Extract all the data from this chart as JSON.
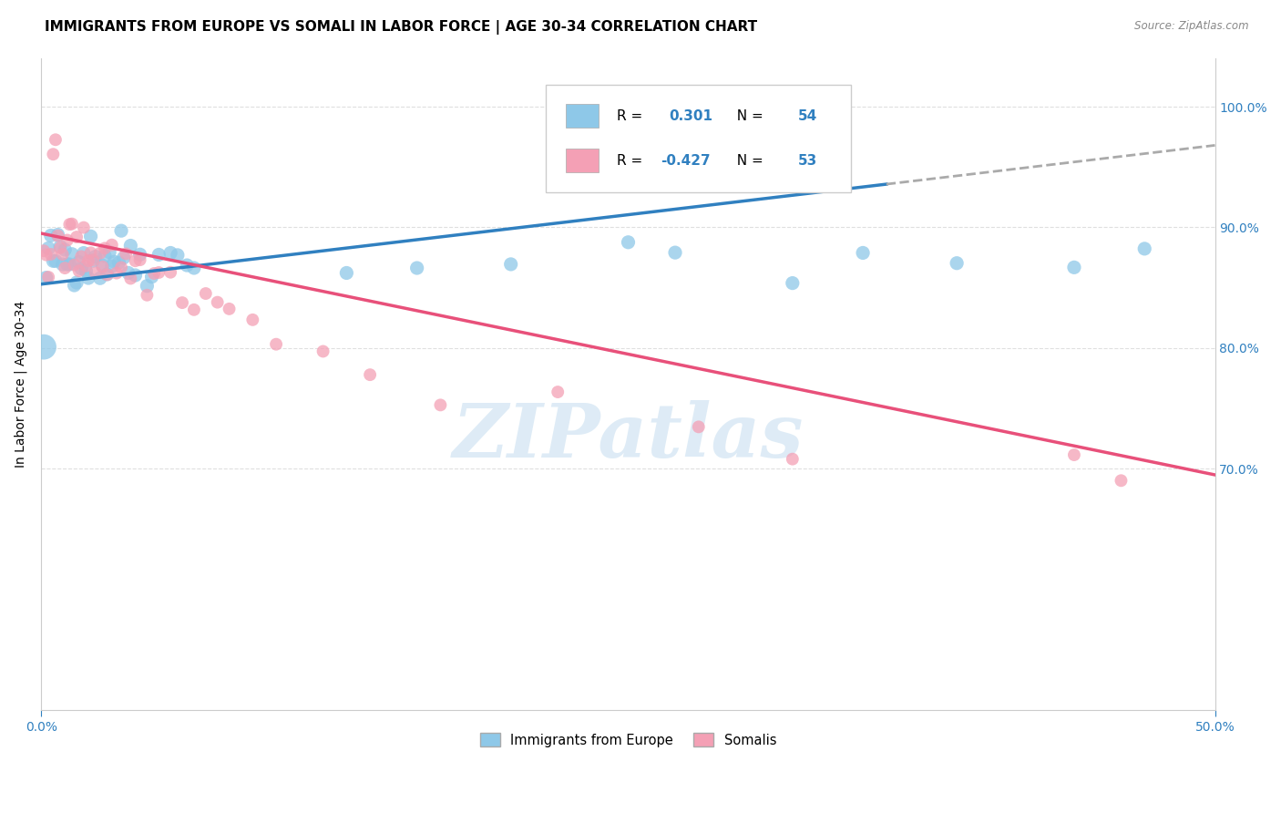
{
  "title": "IMMIGRANTS FROM EUROPE VS SOMALI IN LABOR FORCE | AGE 30-34 CORRELATION CHART",
  "source": "Source: ZipAtlas.com",
  "ylabel": "In Labor Force | Age 30-34",
  "right_yticks": [
    "100.0%",
    "90.0%",
    "80.0%",
    "70.0%"
  ],
  "right_ytick_vals": [
    1.0,
    0.9,
    0.8,
    0.7
  ],
  "xlim": [
    0.0,
    0.5
  ],
  "ylim": [
    0.5,
    1.04
  ],
  "legend_r_europe": "0.301",
  "legend_n_europe": "54",
  "legend_r_somali": "-0.427",
  "legend_n_somali": "53",
  "europe_color": "#8ec8e8",
  "somali_color": "#f4a0b5",
  "europe_line_color": "#3080c0",
  "somali_line_color": "#e8507a",
  "background_color": "#ffffff",
  "grid_color": "#d8d8d8",
  "watermark_text": "ZIPatlas",
  "watermark_color": "#c8dff0",
  "europe_scatter_x": [
    0.001,
    0.002,
    0.003,
    0.004,
    0.005,
    0.006,
    0.007,
    0.008,
    0.009,
    0.01,
    0.011,
    0.012,
    0.013,
    0.014,
    0.015,
    0.016,
    0.017,
    0.018,
    0.019,
    0.02,
    0.021,
    0.022,
    0.023,
    0.025,
    0.026,
    0.027,
    0.028,
    0.029,
    0.03,
    0.031,
    0.033,
    0.034,
    0.035,
    0.037,
    0.038,
    0.04,
    0.042,
    0.045,
    0.047,
    0.05,
    0.055,
    0.058,
    0.062,
    0.065,
    0.13,
    0.16,
    0.2,
    0.25,
    0.27,
    0.32,
    0.35,
    0.39,
    0.44,
    0.47
  ],
  "europe_scatter_y": [
    0.795,
    0.86,
    0.875,
    0.875,
    0.875,
    0.875,
    0.875,
    0.875,
    0.875,
    0.875,
    0.875,
    0.875,
    0.875,
    0.875,
    0.875,
    0.878,
    0.878,
    0.875,
    0.875,
    0.875,
    0.875,
    0.875,
    0.875,
    0.875,
    0.875,
    0.875,
    0.875,
    0.875,
    0.875,
    0.875,
    0.878,
    0.875,
    0.875,
    0.875,
    0.875,
    0.875,
    0.875,
    0.875,
    0.875,
    0.875,
    0.87,
    0.875,
    0.87,
    0.87,
    0.88,
    0.875,
    0.875,
    0.875,
    0.875,
    0.875,
    0.875,
    0.875,
    0.875,
    0.875
  ],
  "europe_scatter_sizes": [
    400,
    120,
    120,
    120,
    120,
    120,
    120,
    120,
    120,
    120,
    120,
    120,
    120,
    120,
    120,
    120,
    120,
    120,
    120,
    120,
    120,
    120,
    120,
    120,
    120,
    120,
    120,
    120,
    120,
    120,
    120,
    120,
    120,
    120,
    120,
    120,
    120,
    120,
    120,
    120,
    120,
    120,
    120,
    120,
    120,
    120,
    120,
    120,
    120,
    120,
    120,
    120,
    120,
    120
  ],
  "somali_scatter_x": [
    0.001,
    0.002,
    0.003,
    0.004,
    0.005,
    0.006,
    0.007,
    0.008,
    0.009,
    0.01,
    0.011,
    0.012,
    0.013,
    0.014,
    0.015,
    0.016,
    0.017,
    0.018,
    0.019,
    0.02,
    0.021,
    0.022,
    0.023,
    0.025,
    0.026,
    0.027,
    0.028,
    0.03,
    0.032,
    0.034,
    0.036,
    0.038,
    0.04,
    0.042,
    0.045,
    0.048,
    0.05,
    0.055,
    0.06,
    0.065,
    0.07,
    0.075,
    0.08,
    0.09,
    0.1,
    0.12,
    0.14,
    0.17,
    0.22,
    0.28,
    0.32,
    0.44,
    0.46
  ],
  "somali_scatter_y": [
    0.878,
    0.878,
    0.878,
    0.878,
    0.96,
    0.948,
    0.895,
    0.88,
    0.878,
    0.878,
    0.878,
    0.895,
    0.895,
    0.878,
    0.878,
    0.878,
    0.87,
    0.878,
    0.878,
    0.878,
    0.878,
    0.878,
    0.878,
    0.878,
    0.878,
    0.878,
    0.87,
    0.87,
    0.87,
    0.87,
    0.87,
    0.87,
    0.87,
    0.86,
    0.86,
    0.86,
    0.86,
    0.855,
    0.85,
    0.845,
    0.84,
    0.835,
    0.83,
    0.82,
    0.81,
    0.795,
    0.775,
    0.76,
    0.745,
    0.73,
    0.72,
    0.705,
    0.7
  ],
  "europe_trend_x0": 0.0,
  "europe_trend_y0": 0.853,
  "europe_trend_x1": 0.5,
  "europe_trend_y1": 0.968,
  "somali_trend_x0": 0.0,
  "somali_trend_y0": 0.895,
  "somali_trend_x1": 0.5,
  "somali_trend_y1": 0.695
}
